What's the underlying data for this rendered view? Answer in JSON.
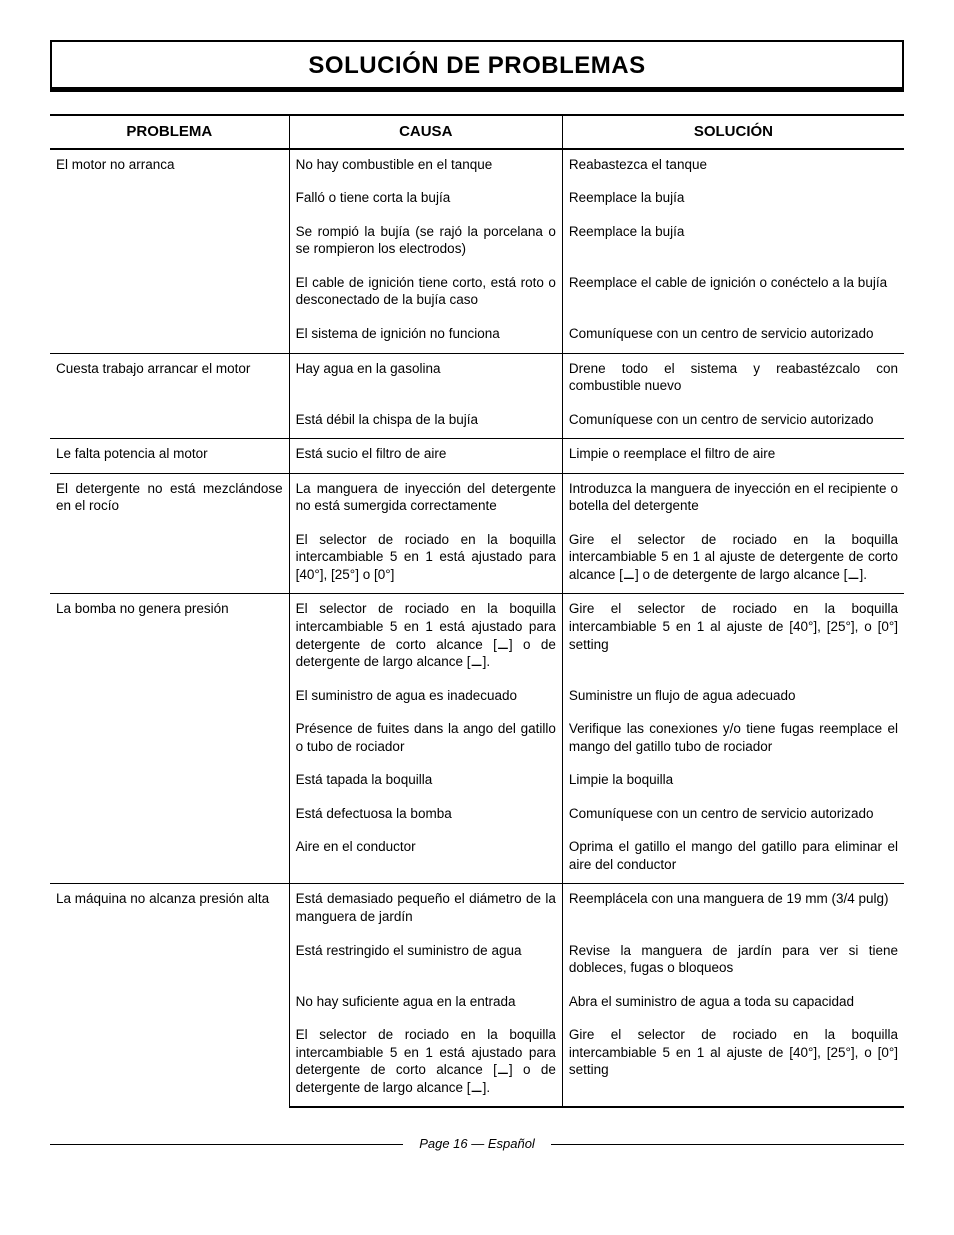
{
  "title": "SOLUCIÓN DE PROBLEMAS",
  "columns": {
    "problema": "PROBLEMA",
    "causa": "CAUSA",
    "solucion": "SOLUCIÓN"
  },
  "groups": [
    {
      "problema": "El motor no arranca",
      "rows": [
        {
          "causa": "No hay combustible en el tanque",
          "solucion": "Reabastezca el tanque"
        },
        {
          "causa": "Falló o tiene corta la bujía",
          "solucion": "Reemplace la bujía"
        },
        {
          "causa": "Se rompió la bujía (se rajó la porcelana o se rompieron los electrodos)",
          "solucion": "Reemplace la bujía"
        },
        {
          "causa": "El cable de ignición tiene corto, está roto o desconectado de la bujía caso",
          "solucion": "Reemplace el cable de ignición o conéctelo a la bujía"
        },
        {
          "causa": "El sistema de ignición no funciona",
          "solucion": "Comuníquese con un centro de servicio autorizado"
        }
      ]
    },
    {
      "problema": "Cuesta trabajo arrancar el motor",
      "rows": [
        {
          "causa": "Hay agua en la gasolina",
          "solucion": "Drene todo el sistema y reabastézcalo con combustible nuevo"
        },
        {
          "causa": "Está débil la chispa de la bujía",
          "solucion": "Comuníquese con un centro de servicio autorizado"
        }
      ]
    },
    {
      "problema": "Le falta potencia al motor",
      "rows": [
        {
          "causa": "Está sucio el filtro de aire",
          "solucion": "Limpie o reemplace el filtro de aire"
        }
      ]
    },
    {
      "problema": "El detergente no está mezclándose en el rocío",
      "rows": [
        {
          "causa": "La manguera de inyección del detergente no está sumergida correctamente",
          "solucion": "Introduzca la manguera de inyección en el recipiente o botella del detergente"
        },
        {
          "causa": "El selector de rociado en la boquilla intercambiable 5 en 1 está ajustado para [40°], [25°] o [0°]",
          "solucion": "Gire el selector de rociado en la boquilla intercambiable 5 en 1 al ajuste de detergente de corto alcance [⚊] o de detergente de largo alcance [⚊]."
        }
      ]
    },
    {
      "problema": "La bomba no genera presión",
      "rows": [
        {
          "causa": "El selector de rociado en la boquilla intercambiable 5 en 1 está ajustado para detergente de corto alcance [⚊] o de detergente de largo alcance [⚊].",
          "solucion": "Gire el selector de rociado en la boquilla intercambiable 5 en 1 al ajuste de [40°], [25°], o [0°] setting"
        },
        {
          "causa": "El suministro de agua es inadecuado",
          "solucion": "Suministre un flujo de agua adecuado"
        },
        {
          "causa": "Présence de fuites dans la ango del gatillo o tubo de rociador",
          "solucion": "Verifique las conexiones y/o tiene fugas reemplace el mango del gatillo tubo de rociador"
        },
        {
          "causa": "Está tapada la boquilla",
          "solucion": "Limpie la boquilla"
        },
        {
          "causa": "Está defectuosa la bomba",
          "solucion": "Comuníquese con un centro de servicio autorizado"
        },
        {
          "causa": "Aire en el conductor",
          "solucion": "Oprima el gatillo el mango del gatillo para eliminar el aire del conductor"
        }
      ]
    },
    {
      "problema": "La máquina no alcanza presión alta",
      "rows": [
        {
          "causa": "Está demasiado pequeño el diámetro de la manguera de jardín",
          "solucion": "Reemplácela con una manguera de 19 mm (3/4 pulg)"
        },
        {
          "causa": "Está restringido el suministro de agua",
          "solucion": "Revise la manguera de jardín para ver si tiene dobleces, fugas o bloqueos"
        },
        {
          "causa": "No hay suficiente agua en la entrada",
          "solucion": "Abra el suministro de agua a toda su capacidad"
        },
        {
          "causa": "El selector de rociado en la boquilla intercambiable 5 en 1 está ajustado para detergente de corto alcance [⚊] o de detergente de largo alcance [⚊].",
          "solucion": "Gire el selector de rociado en la boquilla intercambiable 5 en 1 al ajuste de [40°], [25°], o [0°] setting"
        }
      ]
    }
  ],
  "footer": "Page 16  — Español"
}
